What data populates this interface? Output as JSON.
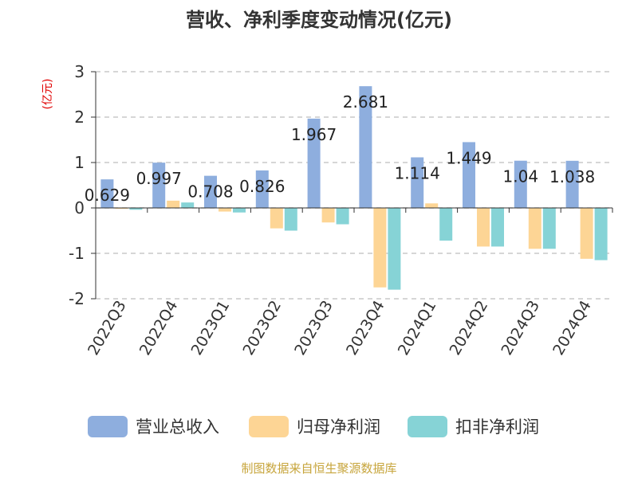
{
  "chart_data": {
    "type": "bar",
    "title": "营收、净利季度变动情况(亿元)",
    "ylabel": "(亿元)",
    "ylim": [
      -2,
      3
    ],
    "yticks": [
      3,
      2,
      1,
      0,
      -1,
      -2
    ],
    "grid": true,
    "legend_position": "bottom",
    "categories": [
      "2022Q3",
      "2022Q4",
      "2023Q1",
      "2023Q2",
      "2023Q3",
      "2023Q4",
      "2024Q1",
      "2024Q2",
      "2024Q3",
      "2024Q4"
    ],
    "series": [
      {
        "name": "营业总收入",
        "color": "#8eaede",
        "values": [
          0.629,
          0.997,
          0.708,
          0.826,
          1.967,
          2.681,
          1.114,
          1.449,
          1.04,
          1.038
        ],
        "data_labels": [
          "0.629",
          "0.997",
          "0.708",
          "0.826",
          "1.967",
          "2.681",
          "1.114",
          "1.449",
          "1.04",
          "1.038"
        ]
      },
      {
        "name": "归母净利润",
        "color": "#fdd595",
        "values": [
          -0.02,
          0.16,
          -0.08,
          -0.45,
          -0.32,
          -1.75,
          0.1,
          -0.85,
          -0.9,
          -1.12
        ]
      },
      {
        "name": "扣非净利润",
        "color": "#86d3d6",
        "values": [
          -0.04,
          0.12,
          -0.1,
          -0.5,
          -0.36,
          -1.8,
          -0.72,
          -0.85,
          -0.9,
          -1.15
        ]
      }
    ]
  },
  "source": "制图数据来自恒生聚源数据库"
}
